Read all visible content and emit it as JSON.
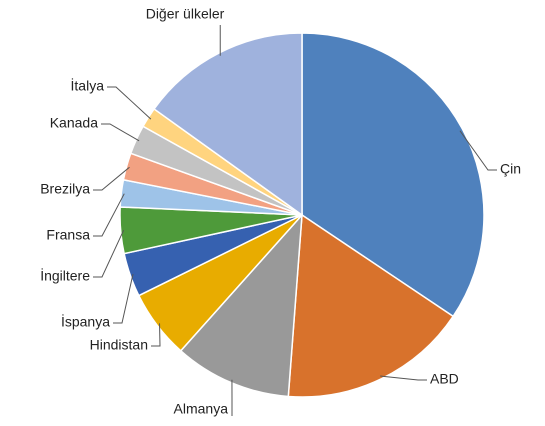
{
  "chart_data": {
    "type": "pie",
    "categories": [
      "Çin",
      "ABD",
      "Almanya",
      "Hindistan",
      "İspanya",
      "İngiltere",
      "Fransa",
      "Brezilya",
      "Kanada",
      "İtalya",
      "Diğer ülkeler"
    ],
    "values": [
      34.4,
      16.8,
      10.4,
      6.1,
      3.9,
      4.1,
      2.4,
      2.4,
      2.6,
      1.8,
      15.1
    ],
    "colors": [
      "#4f81bd",
      "#d8722c",
      "#999999",
      "#e8ac00",
      "#3661b0",
      "#4e9a3a",
      "#9ec3e8",
      "#f2a182",
      "#c3c3c3",
      "#ffd47f",
      "#9fb2dd"
    ]
  }
}
